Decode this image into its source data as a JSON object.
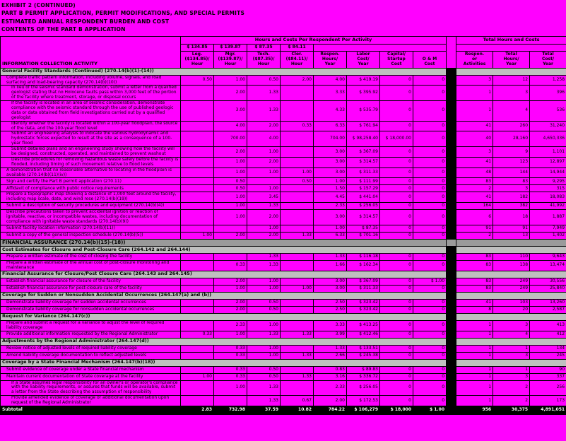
{
  "page": {
    "title_lines": [
      "EXHIBIT 2 (CONTINUED)",
      "PART B PERMIT APPLICATION, PERMIT MODIFICATIONS, AND SPECIAL PERMITS",
      "ESTIMATED ANNUAL RESPONDENT BURDEN AND COST",
      "CONTENTS OF THE PART B APPLICATION"
    ]
  },
  "colors": {
    "background": "#FF00FF",
    "grid": "#000000",
    "section_bg": "#BFBFBF",
    "section_dark_bg": "#9A9A9A",
    "divider": "#000000",
    "subtotal_bg": "#000000",
    "subtotal_text": "#FFFFFF"
  },
  "table": {
    "group_headers": [
      "Hours and Costs Per Respondent Per Activity",
      "Total Hours and Costs"
    ],
    "rate_row": [
      "$ 134.85",
      "$ 139.87",
      "$ 87.35",
      "$ 84.11"
    ],
    "left_header": "INFORMATION COLLECTION ACTIVITY",
    "columns": [
      "Leg.\n($134.85)/\nHour",
      "Mgr.\n($139.87)/\nHour",
      "Tech.\n($87.35)/\nHour",
      "Cler.\n($84.11)/\nHour",
      "Respon.\nHours/\nYear",
      "Labor\nCost/\nYear",
      "Capital/\nStartup\nCost",
      "O & M\nCost",
      "Respon.\nor\nActivities",
      "Total\nHours/\nYear",
      "Total\nCost/\nYear"
    ],
    "rows": [
      {
        "type": "section",
        "label": "General Facility Standards (Continued) (270.14(b)(1)-(14))"
      },
      {
        "type": "item",
        "indent": 1,
        "label": "Complete traffic pattern information, including volume, signals, and road surfacing and load-bearing capacity (270.14(b)(10))",
        "cells": [
          "0.50",
          "1.00",
          "0.50",
          "2.00",
          "4.00",
          "$ 419.19",
          "0",
          "0",
          "3",
          "12",
          "1,258"
        ]
      },
      {
        "type": "item",
        "indent": 2,
        "label": "In lieu of the seismic standard demonstration, submit a letter from a qualified geologist stating that no Holocene faults pass within 3,000 feet of the portion of the facility where treatment, storage, or disposal occurs",
        "cells": [
          "",
          "2.00",
          "1.33",
          "",
          "3.33",
          "$ 395.92",
          "0",
          "0",
          "1",
          "3",
          "396"
        ]
      },
      {
        "type": "item",
        "indent": 2,
        "label": "If the facility is located in an area of seismic consideration, demonstrate compliance with the seismic standard through the use of published geologic data or data obtained from field investigations carried out by a qualified geologist",
        "cells": [
          "",
          "3.00",
          "1.33",
          "",
          "4.33",
          "$ 535.79",
          "0",
          "0",
          "1",
          "4",
          "536"
        ]
      },
      {
        "type": "item",
        "indent": 2,
        "label": "Identify whether the facility is located within a 100-year floodplain, the source of the data, and the 100-year flood level",
        "cells": [
          "",
          "4.00",
          "2.00",
          "0.33",
          "6.33",
          "$ 761.94",
          "0",
          "0",
          "41",
          "260",
          "31,240"
        ]
      },
      {
        "type": "item",
        "indent": 2,
        "label": "Submit an engineering analysis to indicate the various hydrodynamic and hydrostatic forces expected to result at the site as a consequence of a 100-year flood",
        "cells": [
          "",
          "700.00",
          "4.00",
          "",
          "704.00",
          "$ 98,258.40",
          "$ 18,000.00",
          "0",
          "40",
          "28,160",
          "4,650,336"
        ]
      },
      {
        "type": "item",
        "indent": 2,
        "label": "Submit detailed plans and an engineering study showing how the facility will be designed, constructed, operated, and maintained to prevent washout",
        "cells": [
          "",
          "2.00",
          "1.00",
          "",
          "3.00",
          "$ 367.09",
          "0",
          "0",
          "3",
          "9",
          "1,101"
        ]
      },
      {
        "type": "item",
        "indent": 2,
        "label": "Describe procedures for removing hazardous waste safely before the facility is flooded, including timing of such movement relative to flood levels",
        "cells": [
          "",
          "1.00",
          "2.00",
          "",
          "3.00",
          "$ 314.57",
          "0",
          "0",
          "41",
          "123",
          "12,897"
        ]
      },
      {
        "type": "item",
        "indent": 1,
        "label": "A demonstration that no reasonable alternative to locating in the floodplain is available (270.14(b)(11)(iv))",
        "cells": [
          "",
          "1.00",
          "1.00",
          "1.00",
          "3.00",
          "$ 311.33",
          "0",
          "0",
          "48",
          "144",
          "14,944"
        ]
      },
      {
        "type": "item",
        "indent": 1,
        "label": "Sign and certify the Part B permit application (270.11)",
        "cells": [
          "",
          "0.50",
          "",
          "0.50",
          "1.00",
          "$ 111.99",
          "0",
          "0",
          "83",
          "83",
          "9,295"
        ]
      },
      {
        "type": "item",
        "indent": 1,
        "label": "Affidavit of compliance with public notice requirements",
        "cells": [
          "",
          "0.50",
          "1.00",
          "",
          "1.50",
          "$ 157.29",
          "0",
          "0",
          "2",
          "3",
          "315"
        ]
      },
      {
        "type": "item",
        "indent": 1,
        "label": "Prepare a topographic map showing a distance of 1,000 feet around the facility, including map scale, date, and wind rose (270.14(b)(19))",
        "cells": [
          "",
          "1.00",
          "3.45",
          "",
          "4.45",
          "$ 441.04",
          "0",
          "0",
          "41",
          "182",
          "18,083"
        ]
      },
      {
        "type": "item",
        "indent": 1,
        "label": "Submit a description of security procedures and equipment (270.14(b)(4))",
        "cells": [
          "",
          "1.00",
          "1.33",
          "",
          "2.33",
          "$ 256.05",
          "0",
          "0",
          "164",
          "382",
          "41,992"
        ]
      },
      {
        "type": "item",
        "indent": 1,
        "label": "Describe precautions taken to prevent accidental ignition or reaction of ignitable, reactive, or incompatible wastes, including documentation of compliance with ignitable waste standards (270.14(b)(9))",
        "cells": [
          "",
          "1.00",
          "2.00",
          "",
          "3.00",
          "$ 314.57",
          "0",
          "0",
          "6",
          "18",
          "1,887"
        ]
      },
      {
        "type": "item",
        "indent": 1,
        "label": "Submit facility location information (270.14(b)(11))",
        "cells": [
          "",
          "",
          "1.00",
          "",
          "1.00",
          "$ 87.35",
          "0",
          "0",
          "91",
          "91",
          "7,949"
        ]
      },
      {
        "type": "item",
        "indent": 1,
        "label": "Submit a copy of the general inspection schedule (270.14(b)(5))",
        "cells": [
          "1.00",
          "2.00",
          "2.00",
          "1.33",
          "6.33",
          "$ 701.16",
          "0",
          "0",
          "2",
          "13",
          "1,402"
        ]
      },
      {
        "type": "section",
        "variant": "dark",
        "label": "FINANCIAL ASSURANCE (270.14(b)(15)-(18))"
      },
      {
        "type": "section",
        "label": "Cost Estimates for Closure and Post-Closure Care (264.142 and 264.144)"
      },
      {
        "type": "item",
        "indent": 1,
        "label": "Prepare a written estimate of the cost of closing the facility",
        "cells": [
          "",
          "",
          "1.33",
          "",
          "1.33",
          "$ 116.18",
          "0",
          "0",
          "83",
          "110",
          "9,643"
        ]
      },
      {
        "type": "item",
        "indent": 1,
        "label": "Prepare a written estimate of the annual cost of post-closure monitoring and maintenance",
        "cells": [
          "",
          "0.33",
          "1.33",
          "",
          "1.66",
          "$ 162.34",
          "0",
          "0",
          "83",
          "138",
          "13,474"
        ]
      },
      {
        "type": "section",
        "label": "Financial Assurance for Closure/Post Closure Care (264.143 and 264.145)"
      },
      {
        "type": "item",
        "indent": 1,
        "label": "Establish financial assurance for closure of the facility",
        "cells": [
          "",
          "2.00",
          "1.00",
          "",
          "3.00",
          "$ 367.09",
          "0",
          "$ 1.00",
          "83",
          "249",
          "30,556"
        ]
      },
      {
        "type": "item",
        "indent": 1,
        "label": "Establish financial assurance for post-closure care of the facility",
        "cells": [
          "",
          "1.00",
          "1.00",
          "1.00",
          "3.00",
          "$ 311.33",
          "0",
          "0",
          "83",
          "249",
          "25,840"
        ]
      },
      {
        "type": "section",
        "label": "Coverage for Sudden or Nonsudden Accidental Occurrences (264.147(a) and (b))"
      },
      {
        "type": "item",
        "indent": 1,
        "label": "Demonstrate liability coverage for sudden accidental occurrences",
        "cells": [
          "",
          "2.00",
          "0.50",
          "",
          "2.50",
          "$ 323.42",
          "0",
          "0",
          "41",
          "103",
          "13,260"
        ]
      },
      {
        "type": "item",
        "indent": 1,
        "label": "Demonstrate liability coverage for nonsudden accidental occurrences",
        "cells": [
          "",
          "2.00",
          "0.50",
          "",
          "2.50",
          "$ 323.42",
          "0",
          "0",
          "8",
          "20",
          "2,587"
        ]
      },
      {
        "type": "section",
        "label": "Request for Variance (264.147(c))"
      },
      {
        "type": "item",
        "indent": 1,
        "label": "Prepare and submit a request for a variance to adjust the level of required liability coverage",
        "cells": [
          "",
          "2.33",
          "1.00",
          "",
          "3.33",
          "$ 413.25",
          "0",
          "0",
          "1",
          "3",
          "413"
        ]
      },
      {
        "type": "item",
        "indent": 1,
        "label": "Provide additional information requested by the Regional Administrator",
        "cells": [
          "0.33",
          "1.00",
          "1.33",
          "1.33",
          "3.99",
          "$ 412.46",
          "0",
          "0",
          "1",
          "4",
          "412"
        ]
      },
      {
        "type": "section",
        "label": "Adjustments by the Regional Administrator (264.147(d))"
      },
      {
        "type": "item",
        "indent": 1,
        "label": "Review notice of adjusted levels of required liability coverage",
        "cells": [
          "",
          "0.33",
          "1.00",
          "",
          "1.33",
          "$ 133.51",
          "0",
          "0",
          "1",
          "1",
          "134"
        ]
      },
      {
        "type": "item",
        "indent": 1,
        "label": "Amend liability coverage documentation to reflect adjusted levels",
        "cells": [
          "",
          "0.33",
          "1.00",
          "1.33",
          "2.66",
          "$ 245.38",
          "0",
          "0",
          "1",
          "3",
          "245"
        ]
      },
      {
        "type": "section",
        "label": "Coverage by a State Financial Mechanism (264.147(b)(18))"
      },
      {
        "type": "item",
        "indent": 1,
        "label": "Submit evidence of coverage under a State financial mechanism",
        "cells": [
          "",
          "0.33",
          "0.50",
          "",
          "0.83",
          "$ 89.83",
          "0",
          "0",
          "1",
          "1",
          "90"
        ]
      },
      {
        "type": "item",
        "indent": 1,
        "label": "Maintain current documentation of State coverage at the facility",
        "cells": [
          "1.00",
          "0.33",
          "0.50",
          "1.33",
          "3.16",
          "$ 336.72",
          "0",
          "0",
          "1",
          "3",
          "337"
        ]
      },
      {
        "type": "item",
        "indent": 2,
        "label": "If a State assumes legal responsibility for an owner's or operator's compliance with the liability requirements, or assures that funds will be available, submit a letter from the State describing the assumption of responsibility",
        "cells": [
          "",
          "1.00",
          "1.33",
          "",
          "2.33",
          "$ 256.05",
          "0",
          "0",
          "1",
          "2",
          "256"
        ]
      },
      {
        "type": "item",
        "indent": 2,
        "label": "Provide amended evidence of coverage or additional documentation upon request of the Regional Administrator",
        "cells": [
          "",
          "",
          "1.33",
          "0.67",
          "2.00",
          "$ 172.53",
          "0",
          "0",
          "1",
          "2",
          "173"
        ]
      },
      {
        "type": "subtotal",
        "label": "Subtotal",
        "cells": [
          "2.83",
          "732.98",
          "37.59",
          "10.82",
          "784.22",
          "$ 106,279",
          "$ 18,000",
          "$ 1.00",
          "956",
          "30,375",
          "4,891,051"
        ]
      }
    ]
  }
}
